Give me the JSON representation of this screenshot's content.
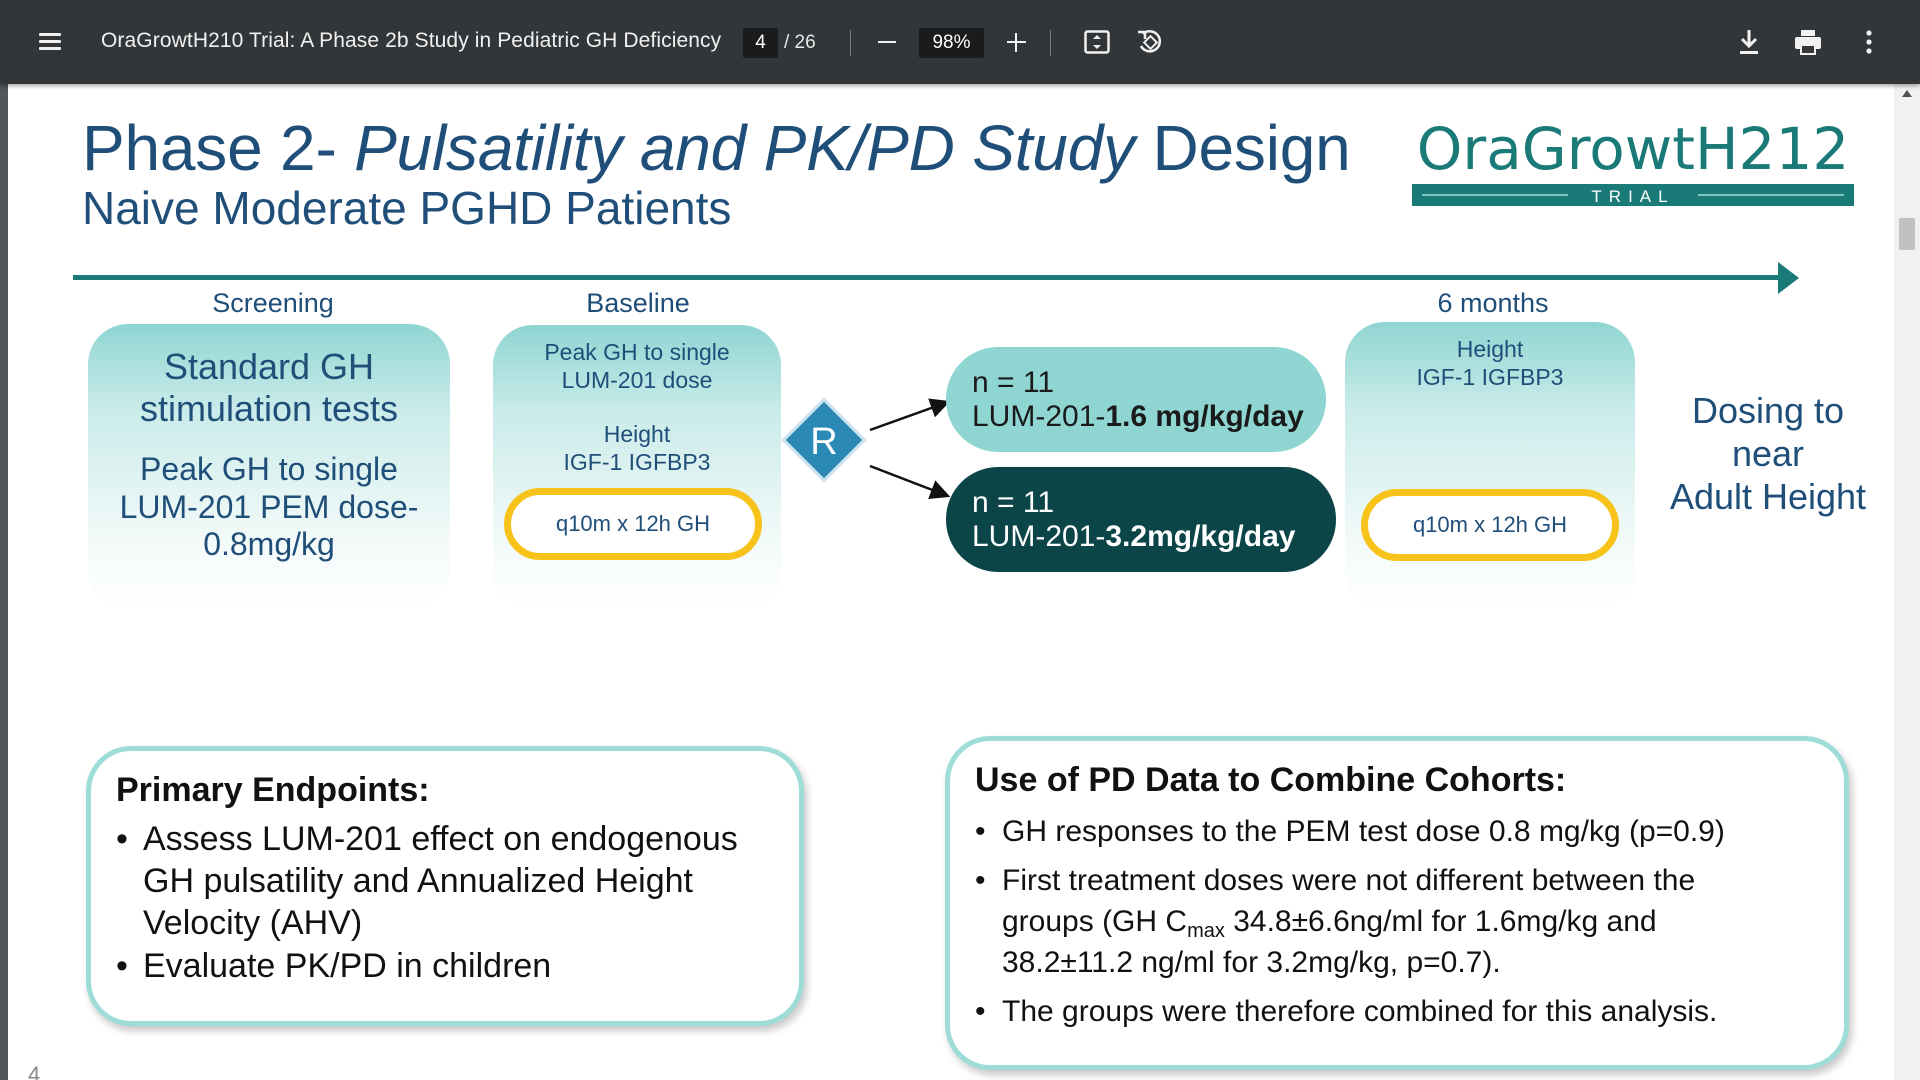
{
  "viewer": {
    "doc_title": "OraGrowtH210 Trial: A Phase 2b Study in Pediatric GH Deficiency",
    "current_page": "4",
    "total_pages": "/ 26",
    "zoom": "98%",
    "icons": [
      "menu-icon",
      "zoom-out-icon",
      "zoom-in-icon",
      "fit-page-icon",
      "rotate-icon",
      "download-icon",
      "print-icon",
      "more-options-icon"
    ]
  },
  "slide": {
    "title_part1": "Phase 2- ",
    "title_italic": "Pulsatility and PK/PD Study",
    "title_part2": " Design",
    "subtitle": "Naive Moderate PGHD Patients",
    "logo": {
      "main": "OraGrowtH212",
      "tag": "TRIAL"
    },
    "stages": {
      "screening": {
        "label": "Screening",
        "line1": "Standard GH",
        "line2": "stimulation tests",
        "line3": "Peak GH to single",
        "line4": "LUM-201 PEM dose-",
        "line5": "0.8mg/kg"
      },
      "baseline": {
        "label": "Baseline",
        "line1": "Peak GH to single",
        "line2": "LUM-201 dose",
        "line3": "Height",
        "line4": "IGF-1 IGFBP3",
        "oval": "q10m x 12h GH"
      },
      "randomize": "R",
      "arm_low": {
        "n": "n = 11",
        "drug": "LUM-201-",
        "dose": "1.6 mg/kg/day"
      },
      "arm_high": {
        "n": "n = 11",
        "drug": "LUM-201-",
        "dose": "3.2mg/kg/day"
      },
      "six_months": {
        "label": "6 months",
        "line1": "Height",
        "line2": "IGF-1 IGFBP3",
        "oval": "q10m x 12h GH"
      },
      "dosing": {
        "line1": "Dosing to",
        "line2": "near",
        "line3": "Adult Height"
      }
    },
    "primary_endpoints": {
      "heading": "Primary Endpoints:",
      "bullet1_line1": "Assess LUM-201 effect on endogenous",
      "bullet1_line2": "GH pulsatility and Annualized Height",
      "bullet1_line3": "Velocity (AHV)",
      "bullet2": "Evaluate PK/PD in children"
    },
    "pd_data": {
      "heading": "Use of PD Data to Combine Cohorts:",
      "bullet1": "GH responses to the PEM test dose 0.8 mg/kg (p=0.9)",
      "bullet2_line1": "First treatment doses were not different between the",
      "bullet2_line2a": "groups (GH C",
      "bullet2_sub": "max",
      "bullet2_line2b": " 34.8±6.6ng/ml for 1.6mg/kg and",
      "bullet2_line3": "38.2±11.2 ng/ml for 3.2mg/kg, p=0.7).",
      "bullet3": "The groups were therefore combined for this analysis."
    },
    "page_number": "4"
  },
  "colors": {
    "toolbar": "#323639",
    "title": "#1f4e79",
    "teal": "#1a7a78",
    "arm_low": "#8fd6d3",
    "arm_high": "#0b4548",
    "oval_border": "#f7c21a"
  }
}
